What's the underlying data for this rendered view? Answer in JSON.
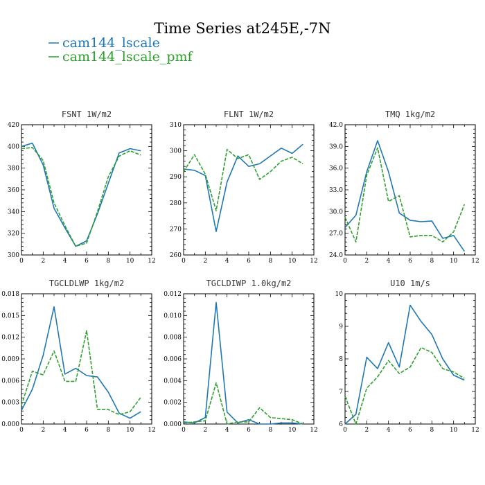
{
  "figure": {
    "title": "Time Series at245E,-7N",
    "legend": [
      {
        "label": "cam144_lscale",
        "color": "#1f77b4",
        "dash": "solid"
      },
      {
        "label": "cam144_lscale_pmf",
        "color": "#2ca02c",
        "dash": "dashed"
      }
    ]
  },
  "chart_data": [
    {
      "type": "line",
      "title": "FSNT   1W/m2",
      "x": [
        0,
        1,
        2,
        3,
        4,
        5,
        6,
        7,
        8,
        9,
        10,
        11
      ],
      "xlim": [
        0,
        12
      ],
      "xticks": [
        0,
        2,
        4,
        6,
        8,
        10,
        12
      ],
      "ylim": [
        300,
        420
      ],
      "yticks": [
        "300",
        "320",
        "340",
        "360",
        "380",
        "400",
        "420"
      ],
      "series": [
        {
          "name": "cam144_lscale",
          "values": [
            400,
            403,
            383,
            343,
            325,
            308,
            313,
            338,
            366,
            394,
            398,
            396
          ]
        },
        {
          "name": "cam144_lscale_pmf",
          "values": [
            398,
            399,
            387,
            348,
            327,
            308,
            311,
            340,
            372,
            391,
            396,
            392
          ]
        }
      ]
    },
    {
      "type": "line",
      "title": "FLNT   1W/m2",
      "x": [
        0,
        1,
        2,
        3,
        4,
        5,
        6,
        7,
        8,
        9,
        10,
        11
      ],
      "xlim": [
        0,
        12
      ],
      "xticks": [
        0,
        2,
        4,
        6,
        8,
        10,
        12
      ],
      "ylim": [
        260,
        310
      ],
      "yticks": [
        "260",
        "270",
        "280",
        "290",
        "300",
        "310"
      ],
      "series": [
        {
          "name": "cam144_lscale",
          "values": [
            293,
            292.5,
            290.5,
            269,
            288,
            298,
            294,
            295,
            298,
            301,
            299,
            302.5
          ]
        },
        {
          "name": "cam144_lscale_pmf",
          "values": [
            292,
            298.5,
            291,
            277,
            300.5,
            297,
            298.5,
            289,
            292,
            296,
            297.5,
            295
          ]
        }
      ]
    },
    {
      "type": "line",
      "title": "TMQ   1kg/m2",
      "x": [
        0,
        1,
        2,
        3,
        4,
        5,
        6,
        7,
        8,
        9,
        10,
        11
      ],
      "xlim": [
        0,
        12
      ],
      "xticks": [
        0,
        2,
        4,
        6,
        8,
        10,
        12
      ],
      "ylim": [
        24,
        42
      ],
      "yticks": [
        "24.0",
        "27.0",
        "30.0",
        "33.0",
        "36.0",
        "39.0",
        "42.0"
      ],
      "series": [
        {
          "name": "cam144_lscale",
          "values": [
            27.8,
            29.5,
            35.5,
            39.8,
            35.5,
            29.8,
            28.8,
            28.6,
            28.7,
            26.3,
            26.7,
            24.5
          ]
        },
        {
          "name": "cam144_lscale_pmf",
          "values": [
            29.2,
            25.8,
            35.0,
            38.8,
            31.4,
            32.2,
            26.5,
            26.7,
            26.7,
            25.8,
            27.2,
            31.0
          ]
        }
      ]
    },
    {
      "type": "line",
      "title": "TGCLDLWP   1kg/m2",
      "x": [
        0,
        1,
        2,
        3,
        4,
        5,
        6,
        7,
        8,
        9,
        10,
        11
      ],
      "xlim": [
        0,
        12
      ],
      "xticks": [
        0,
        2,
        4,
        6,
        8,
        10,
        12
      ],
      "ylim": [
        0,
        0.018
      ],
      "yticks": [
        "0.000",
        "0.003",
        "0.006",
        "0.009",
        "0.012",
        "0.015",
        "0.018"
      ],
      "series": [
        {
          "name": "cam144_lscale",
          "values": [
            0.0019,
            0.0048,
            0.0095,
            0.0162,
            0.0069,
            0.0077,
            0.0067,
            0.0065,
            0.0044,
            0.0015,
            0.0008,
            0.0017
          ]
        },
        {
          "name": "cam144_lscale_pmf",
          "values": [
            0.0026,
            0.0073,
            0.0068,
            0.0101,
            0.0059,
            0.0059,
            0.0129,
            0.002,
            0.002,
            0.0013,
            0.0017,
            0.0037
          ]
        }
      ]
    },
    {
      "type": "line",
      "title": "TGCLDIWP   1.0kg/m2",
      "x": [
        0,
        1,
        2,
        3,
        4,
        5,
        6,
        7,
        8,
        9,
        10,
        11
      ],
      "xlim": [
        0,
        12
      ],
      "xticks": [
        0,
        2,
        4,
        6,
        8,
        10,
        12
      ],
      "ylim": [
        0,
        0.012
      ],
      "yticks": [
        "0.000",
        "0.002",
        "0.004",
        "0.006",
        "0.008",
        "0.010",
        "0.012"
      ],
      "series": [
        {
          "name": "cam144_lscale",
          "values": [
            0.0002,
            0.0001,
            0.0006,
            0.0112,
            0.0011,
            0.0001,
            0.0004,
            0.0,
            0.0,
            0.0001,
            0.0001,
            0.0
          ]
        },
        {
          "name": "cam144_lscale_pmf",
          "values": [
            0.0001,
            0.0002,
            0.0003,
            0.0038,
            0.0,
            0.0002,
            0.0002,
            0.0015,
            0.0006,
            0.0005,
            0.0004,
            0.0
          ]
        }
      ]
    },
    {
      "type": "line",
      "title": "U10   1m/s",
      "x": [
        0,
        1,
        2,
        3,
        4,
        5,
        6,
        7,
        8,
        9,
        10,
        11
      ],
      "xlim": [
        0,
        12
      ],
      "xticks": [
        0,
        2,
        4,
        6,
        8,
        10,
        12
      ],
      "ylim": [
        6,
        10
      ],
      "yticks": [
        "6",
        "7",
        "8",
        "9",
        "10"
      ],
      "series": [
        {
          "name": "cam144_lscale",
          "values": [
            6.0,
            6.3,
            8.05,
            7.7,
            8.5,
            7.75,
            9.65,
            9.15,
            8.75,
            8.0,
            7.5,
            7.35
          ]
        },
        {
          "name": "cam144_lscale_pmf",
          "values": [
            6.85,
            6.0,
            7.1,
            7.45,
            7.95,
            7.55,
            7.75,
            8.35,
            8.2,
            7.7,
            7.6,
            7.4
          ]
        }
      ]
    }
  ]
}
